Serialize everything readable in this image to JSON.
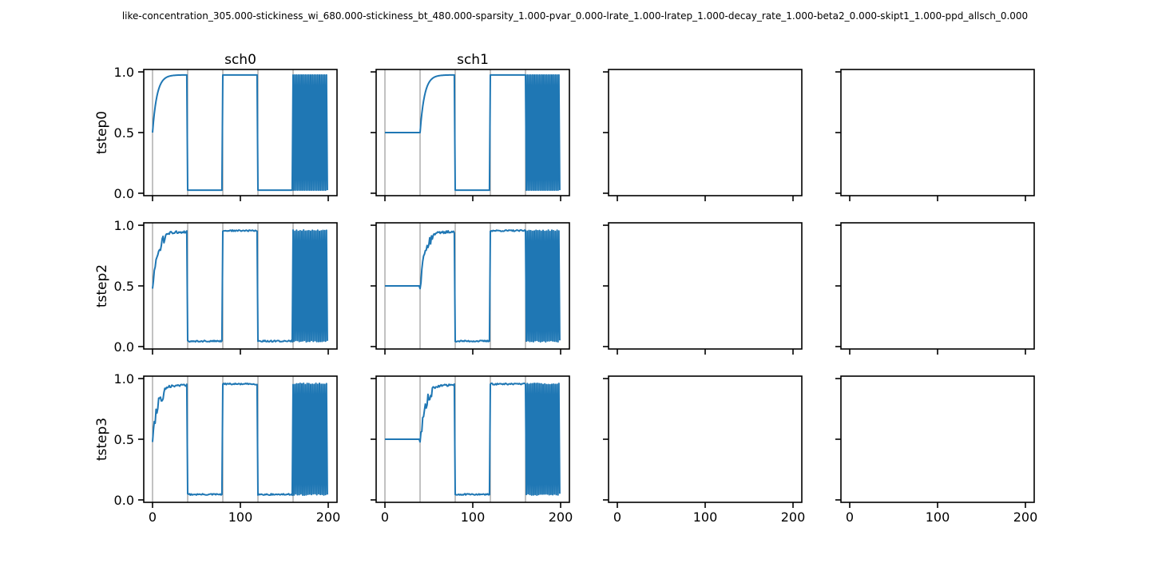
{
  "figure_title": "like-concentration_305.000-stickiness_wi_680.000-stickiness_bt_480.000-sparsity_1.000-pvar_0.000-lrate_1.000-lratep_1.000-decay_rate_1.000-beta2_0.000-skipt1_1.000-ppd_allsch_0.000",
  "colors": {
    "series": "#1f77b4",
    "axes": "#000000",
    "background": "#ffffff"
  },
  "chart_data": {
    "type": "line",
    "layout": {
      "rows": 3,
      "cols": 4,
      "sharex": true,
      "sharey": true
    },
    "column_titles": [
      "sch0",
      "sch1",
      "",
      ""
    ],
    "row_labels": [
      "tstep0",
      "tstep2",
      "tstep3"
    ],
    "xlim": [
      -10,
      210
    ],
    "ylim": [
      -0.02,
      1.02
    ],
    "xticks": [
      0,
      100,
      200
    ],
    "xtick_labels": [
      "0",
      "100",
      "200"
    ],
    "yticks": [
      0.0,
      0.5,
      1.0
    ],
    "ytick_labels": [
      "0.0",
      "0.5",
      "1.0"
    ],
    "grid": false,
    "legend": "none",
    "block_boundaries": [
      0,
      40,
      80,
      120,
      160
    ],
    "panels": [
      {
        "row": 0,
        "col": 0,
        "schedule": "sch0",
        "blocks": [
          "A",
          "B",
          "A",
          "B"
        ],
        "interleaved": "A_first",
        "mode": "smooth",
        "first_block_start": 0.5,
        "high": 0.975,
        "low": 0.025
      },
      {
        "row": 0,
        "col": 1,
        "schedule": "sch1",
        "blocks": [
          "flat",
          "A",
          "B",
          "A"
        ],
        "interleaved": "A_first",
        "mode": "smooth",
        "first_block_start": 0.5,
        "high": 0.975,
        "low": 0.025
      },
      {
        "row": 1,
        "col": 0,
        "schedule": "sch0",
        "blocks": [
          "A",
          "B",
          "A",
          "B"
        ],
        "interleaved": "A_first",
        "mode": "noisy",
        "first_block_start": 0.5,
        "high": 0.955,
        "low": 0.045
      },
      {
        "row": 1,
        "col": 1,
        "schedule": "sch1",
        "blocks": [
          "flat",
          "A",
          "B",
          "A"
        ],
        "interleaved": "A_first",
        "mode": "noisy",
        "first_block_start": 0.5,
        "high": 0.955,
        "low": 0.045
      },
      {
        "row": 2,
        "col": 0,
        "schedule": "sch0",
        "blocks": [
          "A",
          "B",
          "A",
          "B"
        ],
        "interleaved": "A_first",
        "mode": "noisy",
        "first_block_start": 0.5,
        "high": 0.955,
        "low": 0.045
      },
      {
        "row": 2,
        "col": 1,
        "schedule": "sch1",
        "blocks": [
          "flat",
          "A",
          "B",
          "A"
        ],
        "interleaved": "A_first",
        "mode": "noisy",
        "first_block_start": 0.5,
        "high": 0.955,
        "low": 0.045
      },
      {
        "row": 0,
        "col": 2,
        "empty": true
      },
      {
        "row": 0,
        "col": 3,
        "empty": true
      },
      {
        "row": 1,
        "col": 2,
        "empty": true
      },
      {
        "row": 1,
        "col": 3,
        "empty": true
      },
      {
        "row": 2,
        "col": 2,
        "empty": true
      },
      {
        "row": 2,
        "col": 3,
        "empty": true
      }
    ]
  }
}
